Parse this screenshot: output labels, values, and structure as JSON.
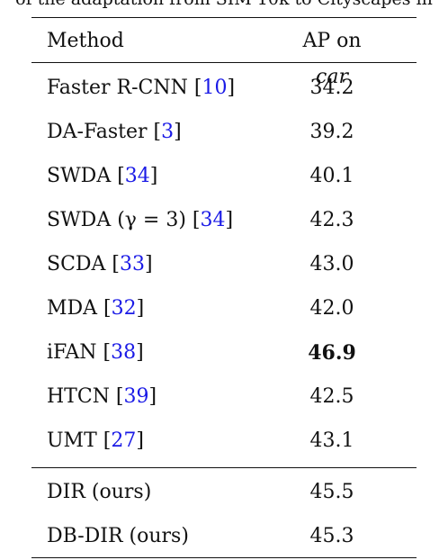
{
  "caption": "of the adaptation from SIM 10k to Cityscapes in",
  "header": {
    "method": "Method",
    "ap_prefix": "AP on ",
    "ap_italic": "car"
  },
  "rows": [
    {
      "pre": "Faster R-CNN [",
      "ref": "10",
      "post": "]",
      "ap": "34.2"
    },
    {
      "pre": "DA-Faster [",
      "ref": "3",
      "post": "]",
      "ap": "39.2"
    },
    {
      "pre": "SWDA [",
      "ref": "34",
      "post": "]",
      "ap": "40.1"
    },
    {
      "pre": "SWDA (γ = 3) [",
      "ref": "34",
      "post": "]",
      "ap": "42.3"
    },
    {
      "pre": "SCDA [",
      "ref": "33",
      "post": "]",
      "ap": "43.0"
    },
    {
      "pre": "MDA [",
      "ref": "32",
      "post": "]",
      "ap": "42.0"
    },
    {
      "pre": "iFAN [",
      "ref": "38",
      "post": "]",
      "ap": "46.9"
    },
    {
      "pre": "HTCN [",
      "ref": "39",
      "post": "]",
      "ap": "42.5"
    },
    {
      "pre": "UMT [",
      "ref": "27",
      "post": "]",
      "ap": "43.1"
    }
  ],
  "ours": [
    {
      "label": "DIR (ours)",
      "ap": "45.5"
    },
    {
      "label": "DB-DIR (ours)",
      "ap": "45.3"
    }
  ]
}
